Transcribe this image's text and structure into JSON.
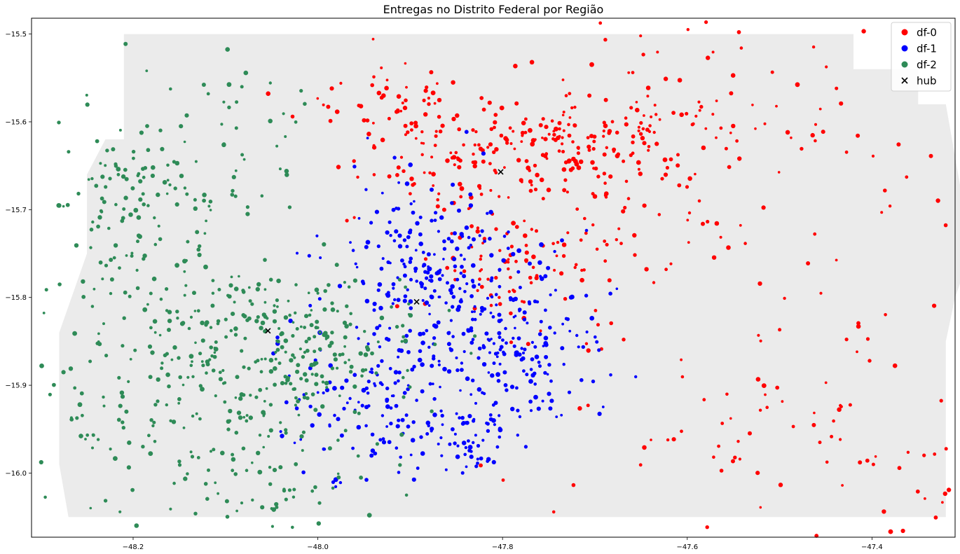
{
  "chart_data": {
    "type": "scatter",
    "title": "Entregas no Distrito Federal por Região",
    "xlabel": "",
    "ylabel": "",
    "xlim": [
      -48.31,
      -47.31
    ],
    "ylim": [
      -16.073,
      -15.482
    ],
    "x_ticks": [
      -48.2,
      -48.0,
      -47.8,
      -47.6,
      -47.4
    ],
    "x_tick_labels": [
      "−48.2",
      "−48.0",
      "−47.8",
      "−47.6",
      "−47.4"
    ],
    "y_ticks": [
      -15.5,
      -15.6,
      -15.7,
      -15.8,
      -15.9,
      -16.0
    ],
    "y_tick_labels": [
      "−15.5",
      "−15.6",
      "−15.7",
      "−15.8",
      "−15.9",
      "−16.0"
    ],
    "grid": false,
    "legend_position": "top-right",
    "background_region_color": "#ebebeb",
    "series": [
      {
        "name": "df-0",
        "color": "#ff0000",
        "marker": "circle",
        "clusters": [
          {
            "center": [
              -47.84,
              -15.64
            ],
            "spread": [
              0.06,
              0.03
            ],
            "weight": 0.12
          },
          {
            "center": [
              -47.71,
              -15.62
            ],
            "spread": [
              0.06,
              0.025
            ],
            "weight": 0.14
          },
          {
            "center": [
              -47.92,
              -15.58
            ],
            "spread": [
              0.05,
              0.025
            ],
            "weight": 0.05
          },
          {
            "center": [
              -47.78,
              -15.76
            ],
            "spread": [
              0.06,
              0.04
            ],
            "weight": 0.12
          },
          {
            "center": [
              -47.6,
              -15.62
            ],
            "spread": [
              0.1,
              0.07
            ],
            "weight": 0.1
          },
          {
            "center": [
              -47.5,
              -15.78
            ],
            "spread": [
              0.16,
              0.16
            ],
            "weight": 0.1
          },
          {
            "center": [
              -47.47,
              -15.98
            ],
            "spread": [
              0.14,
              0.06
            ],
            "weight": 0.07
          }
        ]
      },
      {
        "name": "df-1",
        "color": "#0000ff",
        "marker": "circle",
        "clusters": [
          {
            "center": [
              -47.89,
              -15.76
            ],
            "spread": [
              0.05,
              0.05
            ],
            "weight": 0.2
          },
          {
            "center": [
              -47.83,
              -15.84
            ],
            "spread": [
              0.06,
              0.04
            ],
            "weight": 0.17
          },
          {
            "center": [
              -47.94,
              -15.93
            ],
            "spread": [
              0.05,
              0.04
            ],
            "weight": 0.14
          },
          {
            "center": [
              -47.77,
              -15.86
            ],
            "spread": [
              0.04,
              0.05
            ],
            "weight": 0.1
          },
          {
            "center": [
              -47.83,
              -15.96
            ],
            "spread": [
              0.02,
              0.02
            ],
            "weight": 0.06
          }
        ]
      },
      {
        "name": "df-2",
        "color": "#2e8b57",
        "marker": "circle",
        "clusters": [
          {
            "center": [
              -48.04,
              -15.84
            ],
            "spread": [
              0.08,
              0.04
            ],
            "weight": 0.26
          },
          {
            "center": [
              -48.07,
              -15.91
            ],
            "spread": [
              0.06,
              0.04
            ],
            "weight": 0.1
          },
          {
            "center": [
              -48.05,
              -16.01
            ],
            "spread": [
              0.06,
              0.03
            ],
            "weight": 0.07
          },
          {
            "center": [
              -48.2,
              -15.77
            ],
            "spread": [
              0.05,
              0.1
            ],
            "weight": 0.1
          },
          {
            "center": [
              -48.2,
              -15.68
            ],
            "spread": [
              0.03,
              0.03
            ],
            "weight": 0.05
          },
          {
            "center": [
              -48.22,
              -15.93
            ],
            "spread": [
              0.05,
              0.06
            ],
            "weight": 0.07
          },
          {
            "center": [
              -48.12,
              -15.63
            ],
            "spread": [
              0.07,
              0.06
            ],
            "weight": 0.06
          }
        ]
      },
      {
        "name": "hub",
        "color": "#000000",
        "marker": "x",
        "points": [
          {
            "x": -47.802,
            "y": -15.657
          },
          {
            "x": -47.893,
            "y": -15.805
          },
          {
            "x": -48.054,
            "y": -15.838
          }
        ]
      }
    ]
  }
}
